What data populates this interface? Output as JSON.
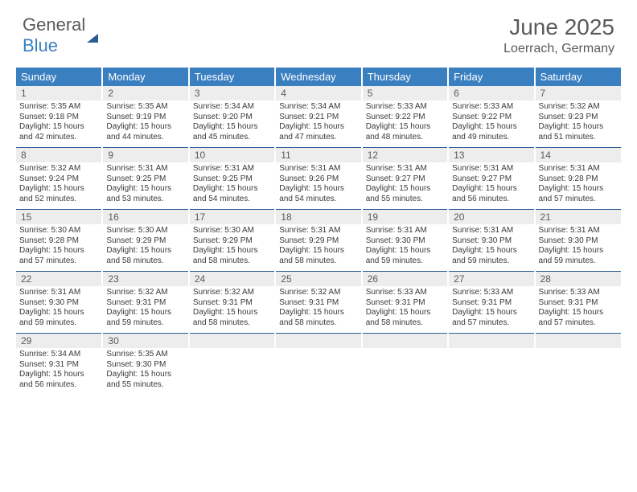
{
  "brand": {
    "part1": "General",
    "part2": "Blue"
  },
  "title": "June 2025",
  "location": "Loerrach, Germany",
  "colors": {
    "header_bg": "#3a7fc0",
    "header_text": "#ffffff",
    "daynum_bg": "#ededed",
    "cell_border": "#2b5c94",
    "body_text": "#3a3a3a",
    "muted_text": "#5a5a5a"
  },
  "day_headers": [
    "Sunday",
    "Monday",
    "Tuesday",
    "Wednesday",
    "Thursday",
    "Friday",
    "Saturday"
  ],
  "weeks": [
    [
      {
        "n": "1",
        "sr": "Sunrise: 5:35 AM",
        "ss": "Sunset: 9:18 PM",
        "d1": "Daylight: 15 hours",
        "d2": "and 42 minutes."
      },
      {
        "n": "2",
        "sr": "Sunrise: 5:35 AM",
        "ss": "Sunset: 9:19 PM",
        "d1": "Daylight: 15 hours",
        "d2": "and 44 minutes."
      },
      {
        "n": "3",
        "sr": "Sunrise: 5:34 AM",
        "ss": "Sunset: 9:20 PM",
        "d1": "Daylight: 15 hours",
        "d2": "and 45 minutes."
      },
      {
        "n": "4",
        "sr": "Sunrise: 5:34 AM",
        "ss": "Sunset: 9:21 PM",
        "d1": "Daylight: 15 hours",
        "d2": "and 47 minutes."
      },
      {
        "n": "5",
        "sr": "Sunrise: 5:33 AM",
        "ss": "Sunset: 9:22 PM",
        "d1": "Daylight: 15 hours",
        "d2": "and 48 minutes."
      },
      {
        "n": "6",
        "sr": "Sunrise: 5:33 AM",
        "ss": "Sunset: 9:22 PM",
        "d1": "Daylight: 15 hours",
        "d2": "and 49 minutes."
      },
      {
        "n": "7",
        "sr": "Sunrise: 5:32 AM",
        "ss": "Sunset: 9:23 PM",
        "d1": "Daylight: 15 hours",
        "d2": "and 51 minutes."
      }
    ],
    [
      {
        "n": "8",
        "sr": "Sunrise: 5:32 AM",
        "ss": "Sunset: 9:24 PM",
        "d1": "Daylight: 15 hours",
        "d2": "and 52 minutes."
      },
      {
        "n": "9",
        "sr": "Sunrise: 5:31 AM",
        "ss": "Sunset: 9:25 PM",
        "d1": "Daylight: 15 hours",
        "d2": "and 53 minutes."
      },
      {
        "n": "10",
        "sr": "Sunrise: 5:31 AM",
        "ss": "Sunset: 9:25 PM",
        "d1": "Daylight: 15 hours",
        "d2": "and 54 minutes."
      },
      {
        "n": "11",
        "sr": "Sunrise: 5:31 AM",
        "ss": "Sunset: 9:26 PM",
        "d1": "Daylight: 15 hours",
        "d2": "and 54 minutes."
      },
      {
        "n": "12",
        "sr": "Sunrise: 5:31 AM",
        "ss": "Sunset: 9:27 PM",
        "d1": "Daylight: 15 hours",
        "d2": "and 55 minutes."
      },
      {
        "n": "13",
        "sr": "Sunrise: 5:31 AM",
        "ss": "Sunset: 9:27 PM",
        "d1": "Daylight: 15 hours",
        "d2": "and 56 minutes."
      },
      {
        "n": "14",
        "sr": "Sunrise: 5:31 AM",
        "ss": "Sunset: 9:28 PM",
        "d1": "Daylight: 15 hours",
        "d2": "and 57 minutes."
      }
    ],
    [
      {
        "n": "15",
        "sr": "Sunrise: 5:30 AM",
        "ss": "Sunset: 9:28 PM",
        "d1": "Daylight: 15 hours",
        "d2": "and 57 minutes."
      },
      {
        "n": "16",
        "sr": "Sunrise: 5:30 AM",
        "ss": "Sunset: 9:29 PM",
        "d1": "Daylight: 15 hours",
        "d2": "and 58 minutes."
      },
      {
        "n": "17",
        "sr": "Sunrise: 5:30 AM",
        "ss": "Sunset: 9:29 PM",
        "d1": "Daylight: 15 hours",
        "d2": "and 58 minutes."
      },
      {
        "n": "18",
        "sr": "Sunrise: 5:31 AM",
        "ss": "Sunset: 9:29 PM",
        "d1": "Daylight: 15 hours",
        "d2": "and 58 minutes."
      },
      {
        "n": "19",
        "sr": "Sunrise: 5:31 AM",
        "ss": "Sunset: 9:30 PM",
        "d1": "Daylight: 15 hours",
        "d2": "and 59 minutes."
      },
      {
        "n": "20",
        "sr": "Sunrise: 5:31 AM",
        "ss": "Sunset: 9:30 PM",
        "d1": "Daylight: 15 hours",
        "d2": "and 59 minutes."
      },
      {
        "n": "21",
        "sr": "Sunrise: 5:31 AM",
        "ss": "Sunset: 9:30 PM",
        "d1": "Daylight: 15 hours",
        "d2": "and 59 minutes."
      }
    ],
    [
      {
        "n": "22",
        "sr": "Sunrise: 5:31 AM",
        "ss": "Sunset: 9:30 PM",
        "d1": "Daylight: 15 hours",
        "d2": "and 59 minutes."
      },
      {
        "n": "23",
        "sr": "Sunrise: 5:32 AM",
        "ss": "Sunset: 9:31 PM",
        "d1": "Daylight: 15 hours",
        "d2": "and 59 minutes."
      },
      {
        "n": "24",
        "sr": "Sunrise: 5:32 AM",
        "ss": "Sunset: 9:31 PM",
        "d1": "Daylight: 15 hours",
        "d2": "and 58 minutes."
      },
      {
        "n": "25",
        "sr": "Sunrise: 5:32 AM",
        "ss": "Sunset: 9:31 PM",
        "d1": "Daylight: 15 hours",
        "d2": "and 58 minutes."
      },
      {
        "n": "26",
        "sr": "Sunrise: 5:33 AM",
        "ss": "Sunset: 9:31 PM",
        "d1": "Daylight: 15 hours",
        "d2": "and 58 minutes."
      },
      {
        "n": "27",
        "sr": "Sunrise: 5:33 AM",
        "ss": "Sunset: 9:31 PM",
        "d1": "Daylight: 15 hours",
        "d2": "and 57 minutes."
      },
      {
        "n": "28",
        "sr": "Sunrise: 5:33 AM",
        "ss": "Sunset: 9:31 PM",
        "d1": "Daylight: 15 hours",
        "d2": "and 57 minutes."
      }
    ],
    [
      {
        "n": "29",
        "sr": "Sunrise: 5:34 AM",
        "ss": "Sunset: 9:31 PM",
        "d1": "Daylight: 15 hours",
        "d2": "and 56 minutes."
      },
      {
        "n": "30",
        "sr": "Sunrise: 5:35 AM",
        "ss": "Sunset: 9:30 PM",
        "d1": "Daylight: 15 hours",
        "d2": "and 55 minutes."
      },
      {
        "n": "",
        "sr": "",
        "ss": "",
        "d1": "",
        "d2": ""
      },
      {
        "n": "",
        "sr": "",
        "ss": "",
        "d1": "",
        "d2": ""
      },
      {
        "n": "",
        "sr": "",
        "ss": "",
        "d1": "",
        "d2": ""
      },
      {
        "n": "",
        "sr": "",
        "ss": "",
        "d1": "",
        "d2": ""
      },
      {
        "n": "",
        "sr": "",
        "ss": "",
        "d1": "",
        "d2": ""
      }
    ]
  ]
}
